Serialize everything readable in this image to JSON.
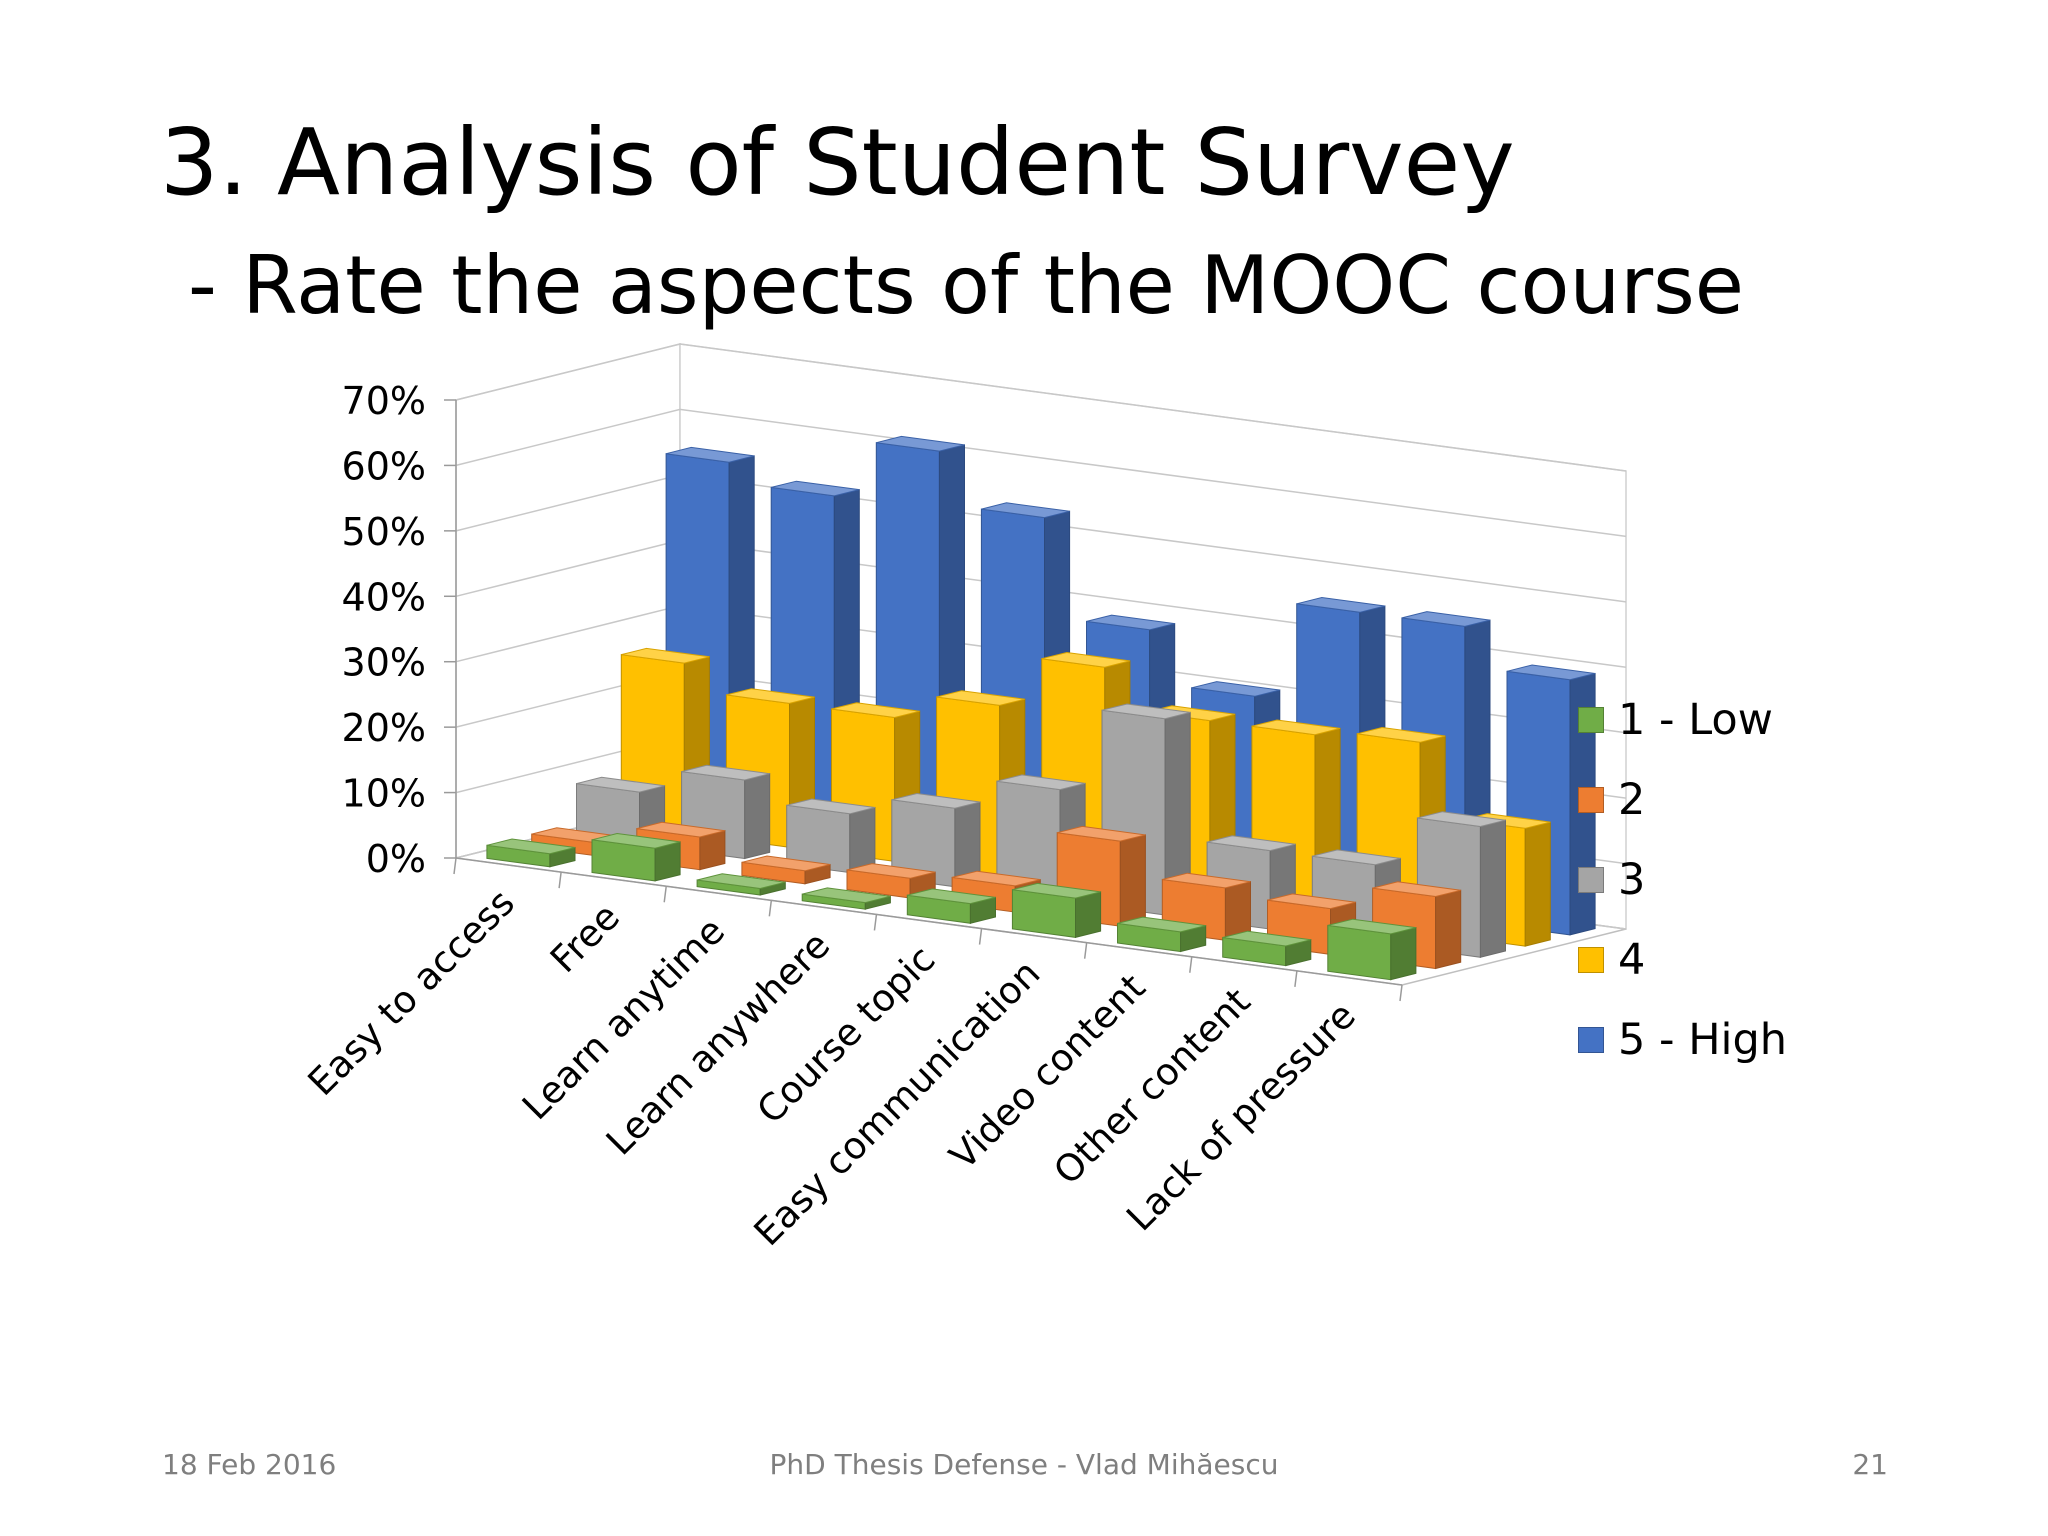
{
  "slide": {
    "title": "3. Analysis of Student Survey",
    "subtitle": "- Rate the aspects of the MOOC course"
  },
  "footer": {
    "date": "18 Feb 2016",
    "center": "PhD Thesis Defense - Vlad Mihăescu",
    "page": "21"
  },
  "chart_data": {
    "type": "bar",
    "subtype": "3d-clustered-columns",
    "categories": [
      "Easy to access",
      "Free",
      "Learn anytime",
      "Learn anywhere",
      "Course topic",
      "Easy communication",
      "Video content",
      "Other content",
      "Lack of pressure"
    ],
    "yticks": [
      "0%",
      "10%",
      "20%",
      "30%",
      "40%",
      "50%",
      "60%",
      "70%"
    ],
    "ylim": [
      0,
      70
    ],
    "grid": true,
    "legend_position": "right",
    "series": [
      {
        "name": "1 - Low",
        "color": "#70ad47",
        "values": [
          2,
          5,
          1,
          1,
          3,
          6,
          3,
          3,
          7
        ]
      },
      {
        "name": "2",
        "color": "#ed7d31",
        "values": [
          2,
          5,
          2,
          3,
          4,
          13,
          8,
          7,
          11
        ]
      },
      {
        "name": "3",
        "color": "#a5a5a5",
        "values": [
          8,
          12,
          9,
          12,
          17,
          30,
          12,
          12,
          20
        ]
      },
      {
        "name": "4",
        "color": "#ffc000",
        "values": [
          26,
          22,
          22,
          26,
          34,
          28,
          28,
          29,
          18
        ]
      },
      {
        "name": "5 - High",
        "color": "#4472c4",
        "values": [
          55,
          52,
          61,
          53,
          38,
          30,
          45,
          45,
          39
        ]
      }
    ]
  }
}
